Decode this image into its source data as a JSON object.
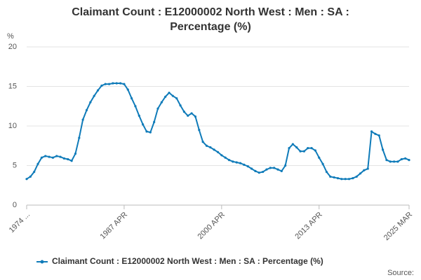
{
  "chart_data": {
    "type": "line",
    "title": [
      "Claimant Count : E12000002 North West : Men : SA :",
      "Percentage (%)"
    ],
    "y_label": "%",
    "source": "Source:",
    "categories": [
      "1974 ...",
      null,
      null,
      null,
      null,
      null,
      null,
      null,
      null,
      null,
      null,
      null,
      null,
      null,
      null,
      null,
      null,
      null,
      null,
      null,
      null,
      null,
      null,
      null,
      null,
      null,
      "1987 APR",
      null,
      null,
      null,
      null,
      null,
      null,
      null,
      null,
      null,
      null,
      null,
      null,
      null,
      null,
      null,
      null,
      null,
      null,
      null,
      null,
      null,
      null,
      null,
      null,
      null,
      "2000 APR",
      null,
      null,
      null,
      null,
      null,
      null,
      null,
      null,
      null,
      null,
      null,
      null,
      null,
      null,
      null,
      null,
      null,
      null,
      null,
      null,
      null,
      null,
      null,
      null,
      null,
      "2013 APR",
      null,
      null,
      null,
      null,
      null,
      null,
      null,
      null,
      null,
      null,
      null,
      null,
      null,
      null,
      null,
      null,
      null,
      null,
      null,
      null,
      null,
      null,
      null,
      "2025 MAR"
    ],
    "series": [
      {
        "name": "Claimant Count : E12000002 North West : Men : SA : Percentage (%)",
        "color": "#0f7bb9",
        "values": [
          3.3,
          3.6,
          4.2,
          5.2,
          6.0,
          6.2,
          6.1,
          6.0,
          6.2,
          6.1,
          5.9,
          5.8,
          5.6,
          6.5,
          8.5,
          10.8,
          12.0,
          13.0,
          13.8,
          14.5,
          15.1,
          15.3,
          15.3,
          15.4,
          15.4,
          15.4,
          15.3,
          14.6,
          13.5,
          12.5,
          11.3,
          10.2,
          9.3,
          9.2,
          10.5,
          12.2,
          13.0,
          13.7,
          14.2,
          13.8,
          13.5,
          12.6,
          11.8,
          11.3,
          11.6,
          11.2,
          9.5,
          8.0,
          7.5,
          7.3,
          7.0,
          6.7,
          6.3,
          6.0,
          5.7,
          5.5,
          5.4,
          5.3,
          5.1,
          4.9,
          4.6,
          4.3,
          4.1,
          4.2,
          4.5,
          4.7,
          4.7,
          4.5,
          4.3,
          5.0,
          7.2,
          7.7,
          7.3,
          6.8,
          6.8,
          7.2,
          7.2,
          6.9,
          6.0,
          5.2,
          4.2,
          3.6,
          3.5,
          3.4,
          3.3,
          3.3,
          3.3,
          3.4,
          3.6,
          4.0,
          4.4,
          4.6,
          9.3,
          9.0,
          8.8,
          7.0,
          5.7,
          5.5,
          5.5,
          5.5,
          5.8,
          5.9,
          5.7
        ]
      }
    ],
    "ylim": [
      0,
      20
    ],
    "yticks": [
      0,
      5,
      10,
      15,
      20
    ],
    "grid": true
  }
}
